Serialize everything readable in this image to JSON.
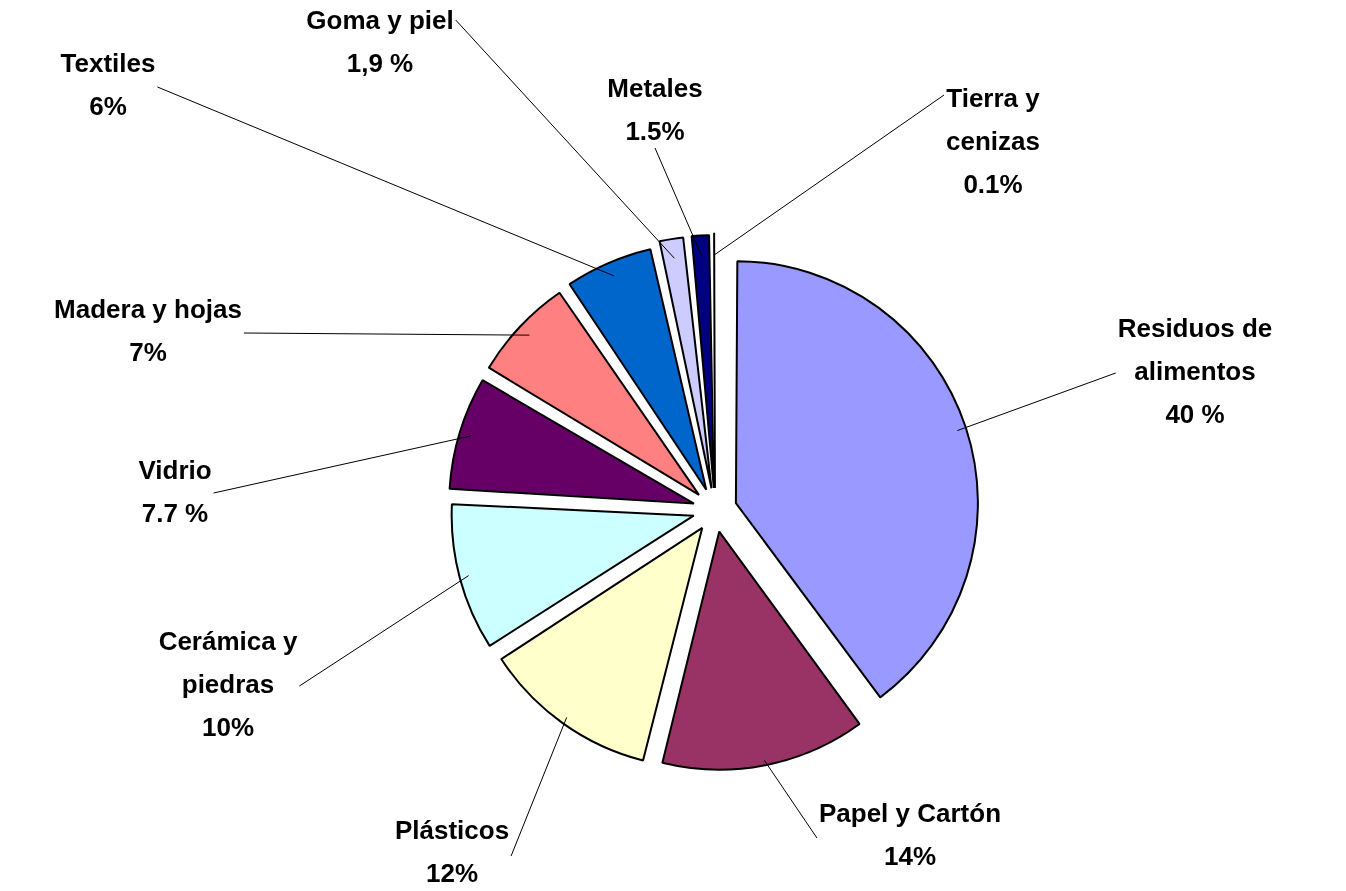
{
  "chart_data": {
    "type": "pie",
    "categories": [
      "Residuos de alimentos",
      "Papel y Cartón",
      "Plásticos",
      "Cerámica y piedras",
      "Vidrio",
      "Madera y hojas",
      "Textiles",
      "Goma y piel",
      "Metales",
      "Tierra y cenizas"
    ],
    "values": [
      40,
      14,
      12,
      10,
      7.7,
      7,
      6,
      1.9,
      1.5,
      0.1
    ],
    "value_labels": [
      "40 %",
      "14%",
      "12%",
      "10%",
      "7.7 %",
      "7%",
      "6%",
      "1,9 %",
      "1.5%",
      "0.1%"
    ],
    "colors": [
      "#9999ff",
      "#993366",
      "#ffffcc",
      "#ccffff",
      "#660066",
      "#ff8080",
      "#0066cc",
      "#ccccff",
      "#000080",
      "#000000"
    ]
  }
}
